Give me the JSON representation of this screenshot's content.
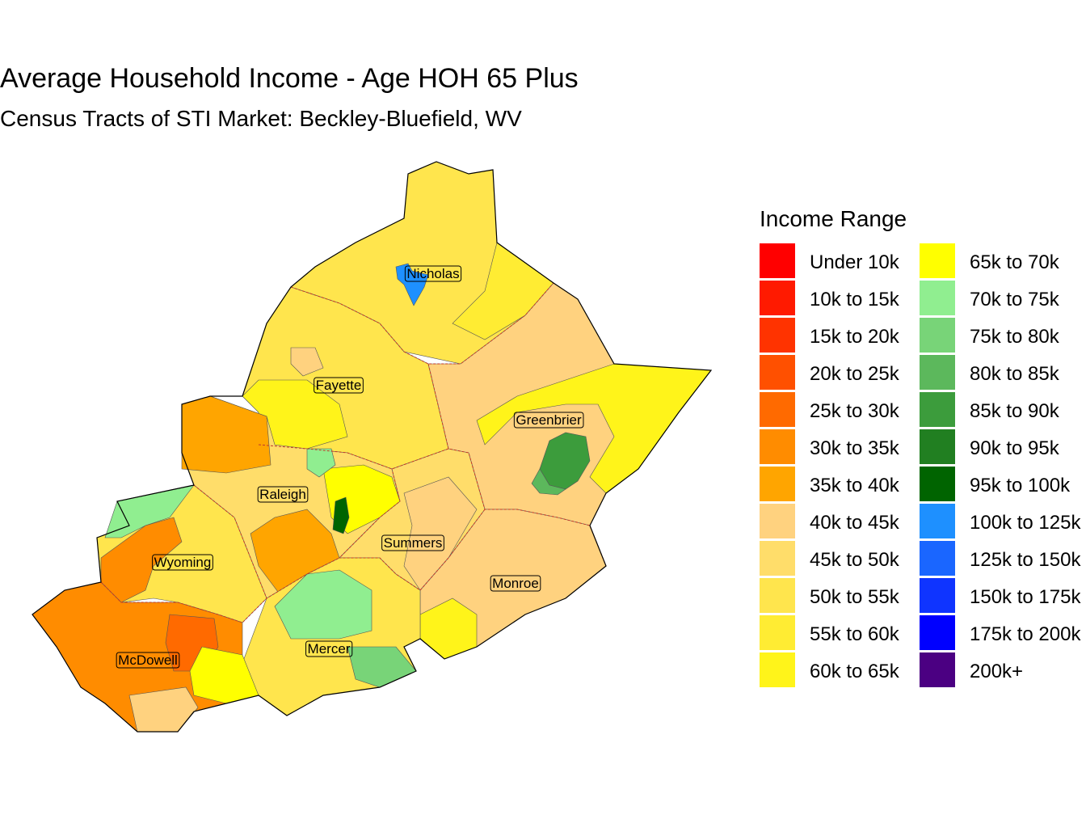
{
  "title": "Average Household Income - Age HOH 65 Plus",
  "subtitle": "Census Tracts of STI Market: Beckley-Bluefield, WV",
  "legend": {
    "title": "Income Range",
    "items": [
      {
        "label": "Under 10k",
        "color": "#FF0000"
      },
      {
        "label": "10k to 15k",
        "color": "#FF1A00"
      },
      {
        "label": "15k to 20k",
        "color": "#FF3300"
      },
      {
        "label": "20k to 25k",
        "color": "#FF5000"
      },
      {
        "label": "25k to 30k",
        "color": "#FF6A00"
      },
      {
        "label": "30k to 35k",
        "color": "#FF8C00"
      },
      {
        "label": "35k to 40k",
        "color": "#FFA500"
      },
      {
        "label": "40k to 45k",
        "color": "#FFD27F"
      },
      {
        "label": "45k to 50k",
        "color": "#FFDD6A"
      },
      {
        "label": "50k to 55k",
        "color": "#FFE54D"
      },
      {
        "label": "55k to 60k",
        "color": "#FFEC33"
      },
      {
        "label": "60k to 65k",
        "color": "#FFF41A"
      },
      {
        "label": "65k to 70k",
        "color": "#FFFF00"
      },
      {
        "label": "70k to 75k",
        "color": "#90EE90"
      },
      {
        "label": "75k to 80k",
        "color": "#78D478"
      },
      {
        "label": "80k to 85k",
        "color": "#5CB85C"
      },
      {
        "label": "85k to 90k",
        "color": "#3C9C3C"
      },
      {
        "label": "90k to 95k",
        "color": "#217F21"
      },
      {
        "label": "95k to 100k",
        "color": "#006400"
      },
      {
        "label": "100k to 125k",
        "color": "#1E90FF"
      },
      {
        "label": "125k to 150k",
        "color": "#1A66FF"
      },
      {
        "label": "150k to 175k",
        "color": "#0F34FF"
      },
      {
        "label": "175k to 200k",
        "color": "#0000FF"
      },
      {
        "label": "200k+",
        "color": "#4B0082"
      }
    ]
  },
  "counties": [
    {
      "name": "Nicholas"
    },
    {
      "name": "Fayette"
    },
    {
      "name": "Greenbrier"
    },
    {
      "name": "Raleigh"
    },
    {
      "name": "Summers"
    },
    {
      "name": "Wyoming"
    },
    {
      "name": "Monroe"
    },
    {
      "name": "Mercer"
    },
    {
      "name": "McDowell"
    }
  ]
}
